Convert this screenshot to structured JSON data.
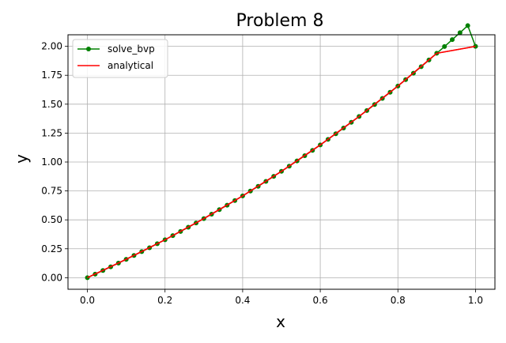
{
  "chart_data": {
    "type": "line",
    "title": "Problem 8",
    "xlabel": "x",
    "ylabel": "y",
    "xlim": [
      -0.05,
      1.05
    ],
    "ylim": [
      -0.1,
      2.1
    ],
    "xticks": [
      0.0,
      0.2,
      0.4,
      0.6,
      0.8,
      1.0
    ],
    "xtick_labels": [
      "0.0",
      "0.2",
      "0.4",
      "0.6",
      "0.8",
      "1.0"
    ],
    "yticks": [
      0.0,
      0.25,
      0.5,
      0.75,
      1.0,
      1.25,
      1.5,
      1.75,
      2.0
    ],
    "ytick_labels": [
      "0.00",
      "0.25",
      "0.50",
      "0.75",
      "1.00",
      "1.25",
      "1.50",
      "1.75",
      "2.00"
    ],
    "grid": true,
    "legend_position": "top-left",
    "series": [
      {
        "name": "solve_bvp",
        "color": "#008000",
        "marker": "circle",
        "x": [
          0.0,
          0.02,
          0.04,
          0.06,
          0.08,
          0.1,
          0.12,
          0.14,
          0.16,
          0.18,
          0.2,
          0.22,
          0.24,
          0.26,
          0.28,
          0.3,
          0.32,
          0.34,
          0.36,
          0.38,
          0.4,
          0.42,
          0.44,
          0.46,
          0.48,
          0.5,
          0.52,
          0.54,
          0.56,
          0.58,
          0.6,
          0.62,
          0.64,
          0.66,
          0.68,
          0.7,
          0.72,
          0.74,
          0.76,
          0.78,
          0.8,
          0.82,
          0.84,
          0.86,
          0.88,
          0.9,
          0.92,
          0.94,
          0.96,
          0.98,
          1.0
        ],
        "y": [
          0.0,
          0.031,
          0.062,
          0.094,
          0.126,
          0.159,
          0.192,
          0.225,
          0.259,
          0.294,
          0.328,
          0.364,
          0.4,
          0.436,
          0.473,
          0.511,
          0.549,
          0.588,
          0.627,
          0.667,
          0.707,
          0.749,
          0.79,
          0.833,
          0.876,
          0.92,
          0.964,
          1.009,
          1.055,
          1.101,
          1.148,
          1.196,
          1.244,
          1.294,
          1.343,
          1.394,
          1.445,
          1.497,
          1.55,
          1.603,
          1.657,
          1.712,
          1.768,
          1.824,
          1.882,
          1.94,
          1.998,
          2.058,
          2.118,
          2.179,
          2.0
        ]
      },
      {
        "name": "analytical",
        "color": "#ff0000",
        "marker": "none",
        "x": [
          0.0,
          0.1,
          0.2,
          0.3,
          0.4,
          0.5,
          0.6,
          0.7,
          0.8,
          0.9,
          1.0
        ],
        "y": [
          0.0,
          0.159,
          0.328,
          0.511,
          0.707,
          0.92,
          1.148,
          1.394,
          1.657,
          1.94,
          2.0
        ]
      }
    ]
  }
}
